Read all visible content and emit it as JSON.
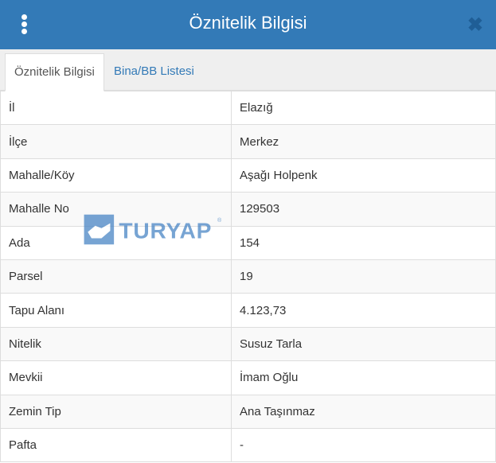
{
  "header": {
    "title": "Öznitelik Bilgisi",
    "menu_icon": "vertical-dots-icon",
    "close_icon": "close-icon"
  },
  "tabs": [
    {
      "label": "Öznitelik Bilgisi",
      "active": true
    },
    {
      "label": "Bina/BB Listesi",
      "active": false
    }
  ],
  "rows": [
    {
      "label": "İl",
      "value": "Elazığ"
    },
    {
      "label": "İlçe",
      "value": "Merkez"
    },
    {
      "label": "Mahalle/Köy",
      "value": "Aşağı Holpenk"
    },
    {
      "label": "Mahalle No",
      "value": "129503"
    },
    {
      "label": "Ada",
      "value": "154"
    },
    {
      "label": "Parsel",
      "value": "19"
    },
    {
      "label": "Tapu Alanı",
      "value": "4.123,73"
    },
    {
      "label": "Nitelik",
      "value": "Susuz Tarla"
    },
    {
      "label": "Mevkii",
      "value": "İmam Oğlu"
    },
    {
      "label": "Zemin Tip",
      "value": "Ana Taşınmaz"
    },
    {
      "label": "Pafta",
      "value": "-"
    }
  ],
  "watermark": {
    "text": "TURYAP",
    "color": "#4a86c5"
  }
}
